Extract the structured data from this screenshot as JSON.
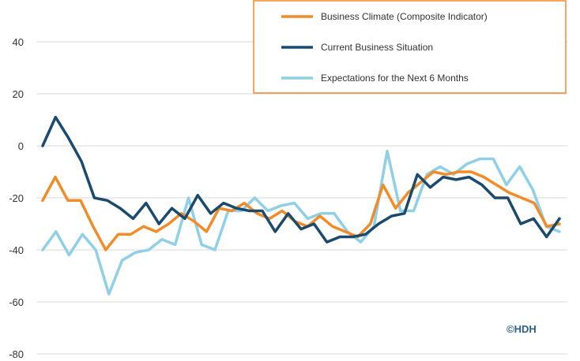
{
  "chart_data": {
    "type": "line",
    "title": "",
    "xlabel": "",
    "ylabel": "",
    "ylim": [
      -80,
      50
    ],
    "yticks": [
      40,
      20,
      0,
      -20,
      -40,
      -60,
      -80
    ],
    "grid": true,
    "legend_position": "top-right",
    "watermark": "©HDH",
    "series": [
      {
        "name": "Business Climate (Composite Indicator)",
        "color": "#f28c28",
        "values": [
          -21,
          -12,
          -21,
          -21,
          -31,
          -40,
          -34,
          -34,
          -31,
          -33,
          -30,
          -26,
          -29,
          -33,
          -24,
          -25,
          -22,
          -26,
          -28,
          -25,
          -29,
          -31,
          -27,
          -31,
          -33,
          -35,
          -30,
          -15,
          -24,
          -18,
          -14,
          -10,
          -11,
          -10,
          -10,
          -12,
          -15,
          -18,
          -20,
          -22,
          -31,
          -30
        ]
      },
      {
        "name": "Current Business Situation",
        "color": "#1b4a6f",
        "values": [
          0,
          11,
          3,
          -6,
          -20,
          -21,
          -24,
          -28,
          -22,
          -30,
          -24,
          -28,
          -19,
          -26,
          -22,
          -24,
          -25,
          -25,
          -33,
          -26,
          -32,
          -30,
          -37,
          -35,
          -35,
          -34,
          -30,
          -27,
          -26,
          -11,
          -16,
          -12,
          -13,
          -12,
          -15,
          -20,
          -20,
          -30,
          -28,
          -35,
          -28
        ]
      },
      {
        "name": "Expectations for the Next 6 Months",
        "color": "#8fd0e6",
        "values": [
          -40,
          -33,
          -42,
          -34,
          -40,
          -57,
          -44,
          -41,
          -40,
          -36,
          -38,
          -20,
          -38,
          -40,
          -25,
          -25,
          -20,
          -25,
          -23,
          -22,
          -28,
          -26,
          -26,
          -33,
          -37,
          -31,
          -2,
          -25,
          -25,
          -11,
          -8,
          -11,
          -7,
          -5,
          -5,
          -15,
          -8,
          -17,
          -31,
          -33
        ]
      }
    ]
  }
}
